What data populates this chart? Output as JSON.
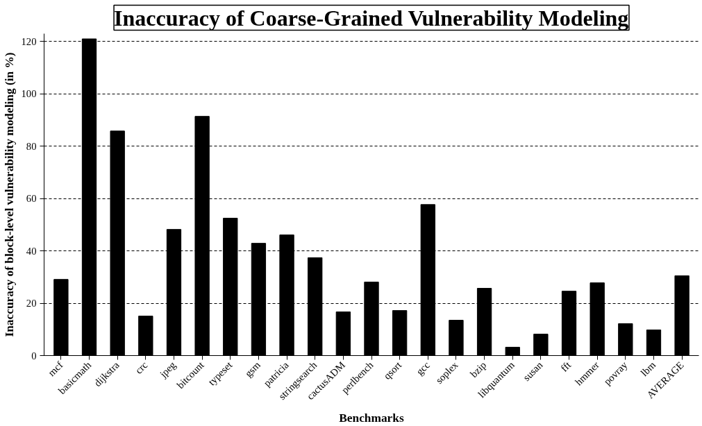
{
  "chart_data": {
    "type": "bar",
    "title": "Inaccuracy of Coarse-Grained Vulnerability Modeling",
    "xlabel": "Benchmarks",
    "ylabel": "Inaccuracy of block-level vulnerability modeling (in %)",
    "categories": [
      "mcf",
      "basicmath",
      "dijkstra",
      "crc",
      "jpeg",
      "bitcount",
      "typeset",
      "gsm",
      "patricia",
      "stringsearch",
      "cactusADM",
      "perlbench",
      "qsort",
      "gcc",
      "soplex",
      "bzip",
      "libquantum",
      "susan",
      "fft",
      "hmmer",
      "povray",
      "lbm",
      "AVERAGE"
    ],
    "values": [
      29.1,
      121,
      85.8,
      15.1,
      48.2,
      91.4,
      52.5,
      42.9,
      46.1,
      37.4,
      16.7,
      28.1,
      17.2,
      57.7,
      13.5,
      25.7,
      3.2,
      8.2,
      24.6,
      27.8,
      12.2,
      9.8,
      30.5
    ],
    "color": "#000000",
    "ylim": [
      0,
      123
    ],
    "yticks": [
      0,
      20,
      40,
      60,
      80,
      100,
      120
    ],
    "grid": "y",
    "line_style": "dashed"
  }
}
